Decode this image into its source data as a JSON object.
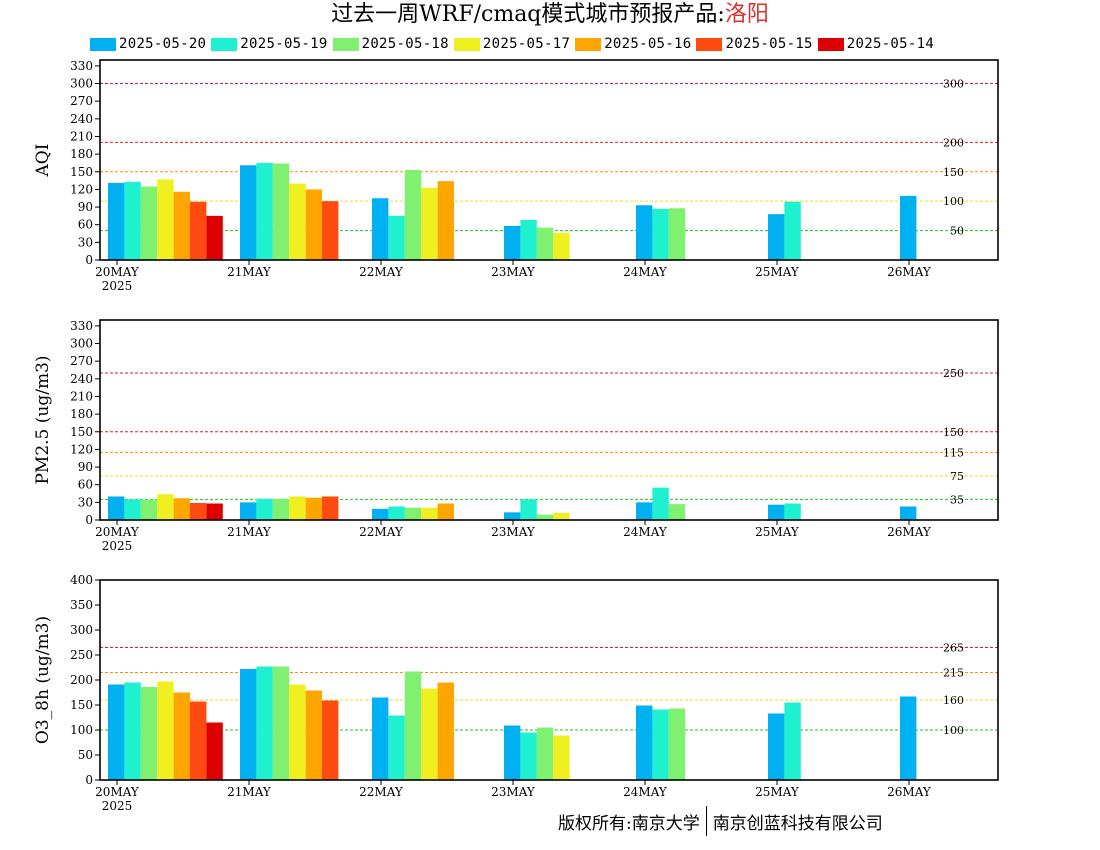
{
  "title": {
    "main": "过去一周WRF/cmaq模式城市预报产品:",
    "city": "洛阳"
  },
  "legend": [
    {
      "label": "2025-05-20",
      "color": "#00b0f0"
    },
    {
      "label": "2025-05-19",
      "color": "#1ef0d0"
    },
    {
      "label": "2025-05-18",
      "color": "#80f070"
    },
    {
      "label": "2025-05-17",
      "color": "#f0f020"
    },
    {
      "label": "2025-05-16",
      "color": "#ffa500"
    },
    {
      "label": "2025-05-15",
      "color": "#ff4a10"
    },
    {
      "label": "2025-05-14",
      "color": "#dd0000"
    }
  ],
  "footer": {
    "left": "版权所有:南京大学",
    "right": "南京创蓝科技有限公司"
  },
  "chart_data": [
    {
      "type": "bar",
      "ylabel": "AQI",
      "ylim": [
        0,
        340
      ],
      "yticks": [
        0,
        30,
        60,
        90,
        120,
        150,
        180,
        210,
        240,
        270,
        300,
        330
      ],
      "categories": [
        "20MAY",
        "21MAY",
        "22MAY",
        "23MAY",
        "24MAY",
        "25MAY",
        "26MAY"
      ],
      "year_label": "2025",
      "thresholds": [
        {
          "value": 300,
          "label": "300",
          "color": "#c0204a"
        },
        {
          "value": 200,
          "label": "200",
          "color": "#e02020"
        },
        {
          "value": 150,
          "label": "150",
          "color": "#ff8c00"
        },
        {
          "value": 100,
          "label": "100",
          "color": "#e8e020"
        },
        {
          "value": 50,
          "label": "50",
          "color": "#20c020"
        }
      ],
      "series": [
        {
          "name": "2025-05-20",
          "values": [
            131,
            161,
            105,
            58,
            93,
            78,
            109
          ]
        },
        {
          "name": "2025-05-19",
          "values": [
            133,
            165,
            75,
            68,
            87,
            99,
            null
          ]
        },
        {
          "name": "2025-05-18",
          "values": [
            125,
            164,
            153,
            55,
            88,
            null,
            null
          ]
        },
        {
          "name": "2025-05-17",
          "values": [
            137,
            130,
            123,
            46,
            null,
            null,
            null
          ]
        },
        {
          "name": "2025-05-16",
          "values": [
            116,
            120,
            134,
            null,
            null,
            null,
            null
          ]
        },
        {
          "name": "2025-05-15",
          "values": [
            99,
            100,
            null,
            null,
            null,
            null,
            null
          ]
        },
        {
          "name": "2025-05-14",
          "values": [
            75,
            null,
            null,
            null,
            null,
            null,
            null
          ]
        }
      ]
    },
    {
      "type": "bar",
      "ylabel": "PM2.5 (ug/m3)",
      "ylim": [
        0,
        340
      ],
      "yticks": [
        0,
        30,
        60,
        90,
        120,
        150,
        180,
        210,
        240,
        270,
        300,
        330
      ],
      "categories": [
        "20MAY",
        "21MAY",
        "22MAY",
        "23MAY",
        "24MAY",
        "25MAY",
        "26MAY"
      ],
      "year_label": "2025",
      "thresholds": [
        {
          "value": 250,
          "label": "250",
          "color": "#c0204a"
        },
        {
          "value": 150,
          "label": "150",
          "color": "#e02020"
        },
        {
          "value": 115,
          "label": "115",
          "color": "#ff8c00"
        },
        {
          "value": 75,
          "label": "75",
          "color": "#e8e020"
        },
        {
          "value": 35,
          "label": "35",
          "color": "#20c020"
        }
      ],
      "series": [
        {
          "name": "2025-05-20",
          "values": [
            40,
            30,
            19,
            13,
            30,
            26,
            23
          ]
        },
        {
          "name": "2025-05-19",
          "values": [
            35,
            36,
            23,
            35,
            55,
            28,
            null
          ]
        },
        {
          "name": "2025-05-18",
          "values": [
            35,
            36,
            21,
            9,
            27,
            null,
            null
          ]
        },
        {
          "name": "2025-05-17",
          "values": [
            44,
            40,
            21,
            12,
            null,
            null,
            null
          ]
        },
        {
          "name": "2025-05-16",
          "values": [
            37,
            38,
            28,
            null,
            null,
            null,
            null
          ]
        },
        {
          "name": "2025-05-15",
          "values": [
            29,
            40,
            null,
            null,
            null,
            null,
            null
          ]
        },
        {
          "name": "2025-05-14",
          "values": [
            28,
            null,
            null,
            null,
            null,
            null,
            null
          ]
        }
      ]
    },
    {
      "type": "bar",
      "ylabel": "O3_8h (ug/m3)",
      "ylim": [
        0,
        400
      ],
      "yticks": [
        0,
        50,
        100,
        150,
        200,
        250,
        300,
        350,
        400
      ],
      "categories": [
        "20MAY",
        "21MAY",
        "22MAY",
        "23MAY",
        "24MAY",
        "25MAY",
        "26MAY"
      ],
      "year_label": "2025",
      "thresholds": [
        {
          "value": 265,
          "label": "265",
          "color": "#e02020"
        },
        {
          "value": 215,
          "label": "215",
          "color": "#ff8c00"
        },
        {
          "value": 160,
          "label": "160",
          "color": "#e8e020"
        },
        {
          "value": 100,
          "label": "100",
          "color": "#20c020"
        }
      ],
      "series": [
        {
          "name": "2025-05-20",
          "values": [
            191,
            222,
            165,
            109,
            149,
            133,
            167
          ]
        },
        {
          "name": "2025-05-19",
          "values": [
            195,
            227,
            129,
            95,
            141,
            155,
            null
          ]
        },
        {
          "name": "2025-05-18",
          "values": [
            186,
            227,
            217,
            105,
            143,
            null,
            null
          ]
        },
        {
          "name": "2025-05-17",
          "values": [
            197,
            191,
            183,
            89,
            null,
            null,
            null
          ]
        },
        {
          "name": "2025-05-16",
          "values": [
            175,
            179,
            195,
            null,
            null,
            null,
            null
          ]
        },
        {
          "name": "2025-05-15",
          "values": [
            157,
            159,
            null,
            null,
            null,
            null,
            null
          ]
        },
        {
          "name": "2025-05-14",
          "values": [
            115,
            null,
            null,
            null,
            null,
            null,
            null
          ]
        }
      ]
    }
  ]
}
